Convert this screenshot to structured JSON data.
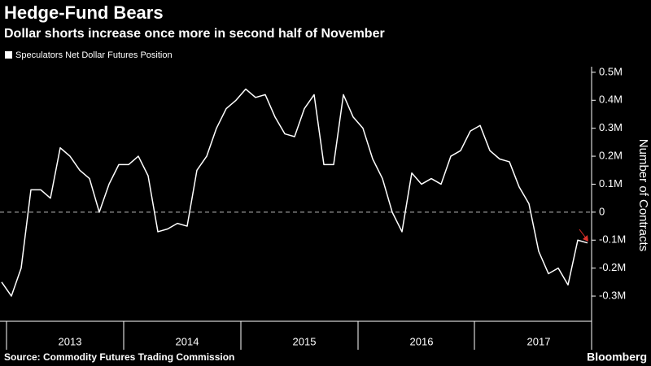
{
  "chart_data": {
    "type": "line",
    "title": "Hedge-Fund Bears",
    "subtitle": "Dollar shorts increase once more in second half of November",
    "y_label": "Number of Contracts",
    "source": "Source: Commodity Futures Trading Commission",
    "brand": "Bloomberg",
    "categories": [
      null,
      null,
      null,
      null,
      null,
      null,
      null,
      "2013",
      null,
      null,
      null,
      null,
      null,
      null,
      null,
      null,
      null,
      null,
      null,
      "2014",
      null,
      null,
      null,
      null,
      null,
      null,
      null,
      null,
      null,
      null,
      null,
      "2015",
      null,
      null,
      null,
      null,
      null,
      null,
      null,
      null,
      null,
      null,
      null,
      "2016",
      null,
      null,
      null,
      null,
      null,
      null,
      null,
      null,
      null,
      null,
      null,
      "2017",
      null,
      null,
      null,
      null,
      null
    ],
    "series": [
      {
        "name": "Speculators Net Dollar Futures Position",
        "color": "#ffffff",
        "values": [
          -0.25,
          -0.3,
          -0.2,
          0.08,
          0.08,
          0.05,
          0.23,
          0.2,
          0.15,
          0.12,
          0.0,
          0.1,
          0.17,
          0.17,
          0.2,
          0.13,
          -0.07,
          -0.06,
          -0.04,
          -0.05,
          0.15,
          0.2,
          0.3,
          0.37,
          0.4,
          0.44,
          0.41,
          0.42,
          0.34,
          0.28,
          0.27,
          0.37,
          0.42,
          0.17,
          0.17,
          0.42,
          0.34,
          0.3,
          0.19,
          0.12,
          0.0,
          -0.07,
          0.14,
          0.1,
          0.12,
          0.1,
          0.2,
          0.22,
          0.29,
          0.31,
          0.22,
          0.19,
          0.18,
          0.09,
          0.03,
          -0.14,
          -0.22,
          -0.2,
          -0.26,
          -0.1,
          -0.11
        ]
      }
    ],
    "ylim": [
      -0.39,
      0.52
    ],
    "yticks": [
      {
        "value": 0.5,
        "label": "0.5M"
      },
      {
        "value": 0.4,
        "label": "0.4M"
      },
      {
        "value": 0.3,
        "label": "0.3M"
      },
      {
        "value": 0.2,
        "label": "0.2M"
      },
      {
        "value": 0.1,
        "label": "0.1M"
      },
      0,
      {
        "value": -0.1,
        "label": "-0.1M"
      },
      {
        "value": -0.2,
        "label": "-0.2M"
      },
      {
        "value": -0.3,
        "label": "-0.3M"
      }
    ],
    "zero_line": true,
    "background": "#000000"
  }
}
